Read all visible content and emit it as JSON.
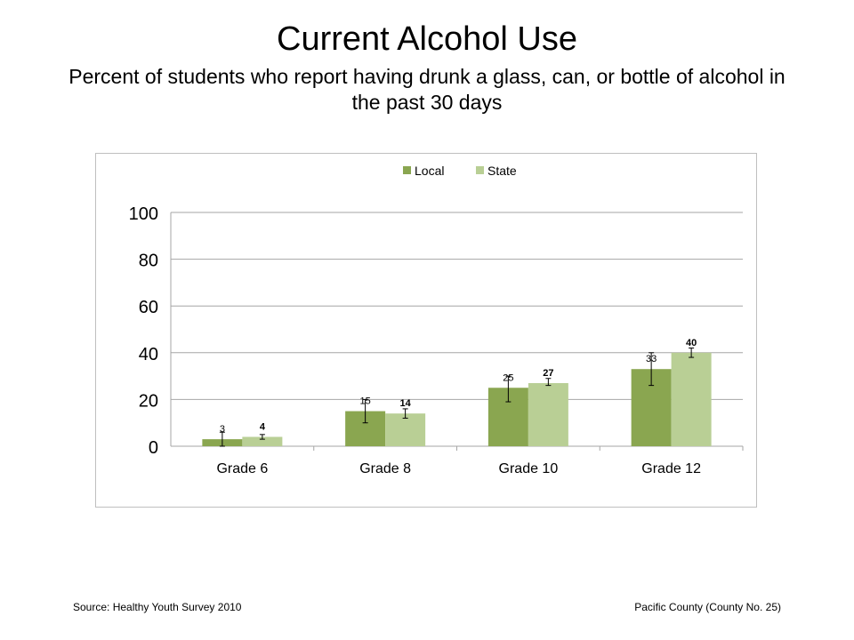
{
  "title": "Current Alcohol Use",
  "subtitle": "Percent of students who report having drunk a glass, can, or bottle of alcohol in the past 30 days",
  "footer": {
    "source": "Source: Healthy Youth Survey 2010",
    "county": "Pacific County (County No. 25)"
  },
  "chart_data": {
    "type": "bar",
    "categories": [
      "Grade 6",
      "Grade 8",
      "Grade 10",
      "Grade 12"
    ],
    "series": [
      {
        "name": "Local",
        "color": "#8aa650",
        "values": [
          3,
          15,
          25,
          33
        ],
        "error": [
          [
            0,
            6
          ],
          [
            10,
            20
          ],
          [
            19,
            30
          ],
          [
            26,
            40
          ]
        ]
      },
      {
        "name": "State",
        "color": "#b9cf95",
        "values": [
          4,
          14,
          27,
          40
        ],
        "error": [
          [
            3,
            5
          ],
          [
            12,
            16
          ],
          [
            26,
            29
          ],
          [
            38,
            42
          ]
        ]
      }
    ],
    "ylim": [
      0,
      100
    ],
    "yticks": [
      "0",
      "20",
      "40",
      "60",
      "80",
      "100"
    ],
    "grid": true,
    "legend": "top-center",
    "xlabel": "",
    "ylabel": ""
  }
}
